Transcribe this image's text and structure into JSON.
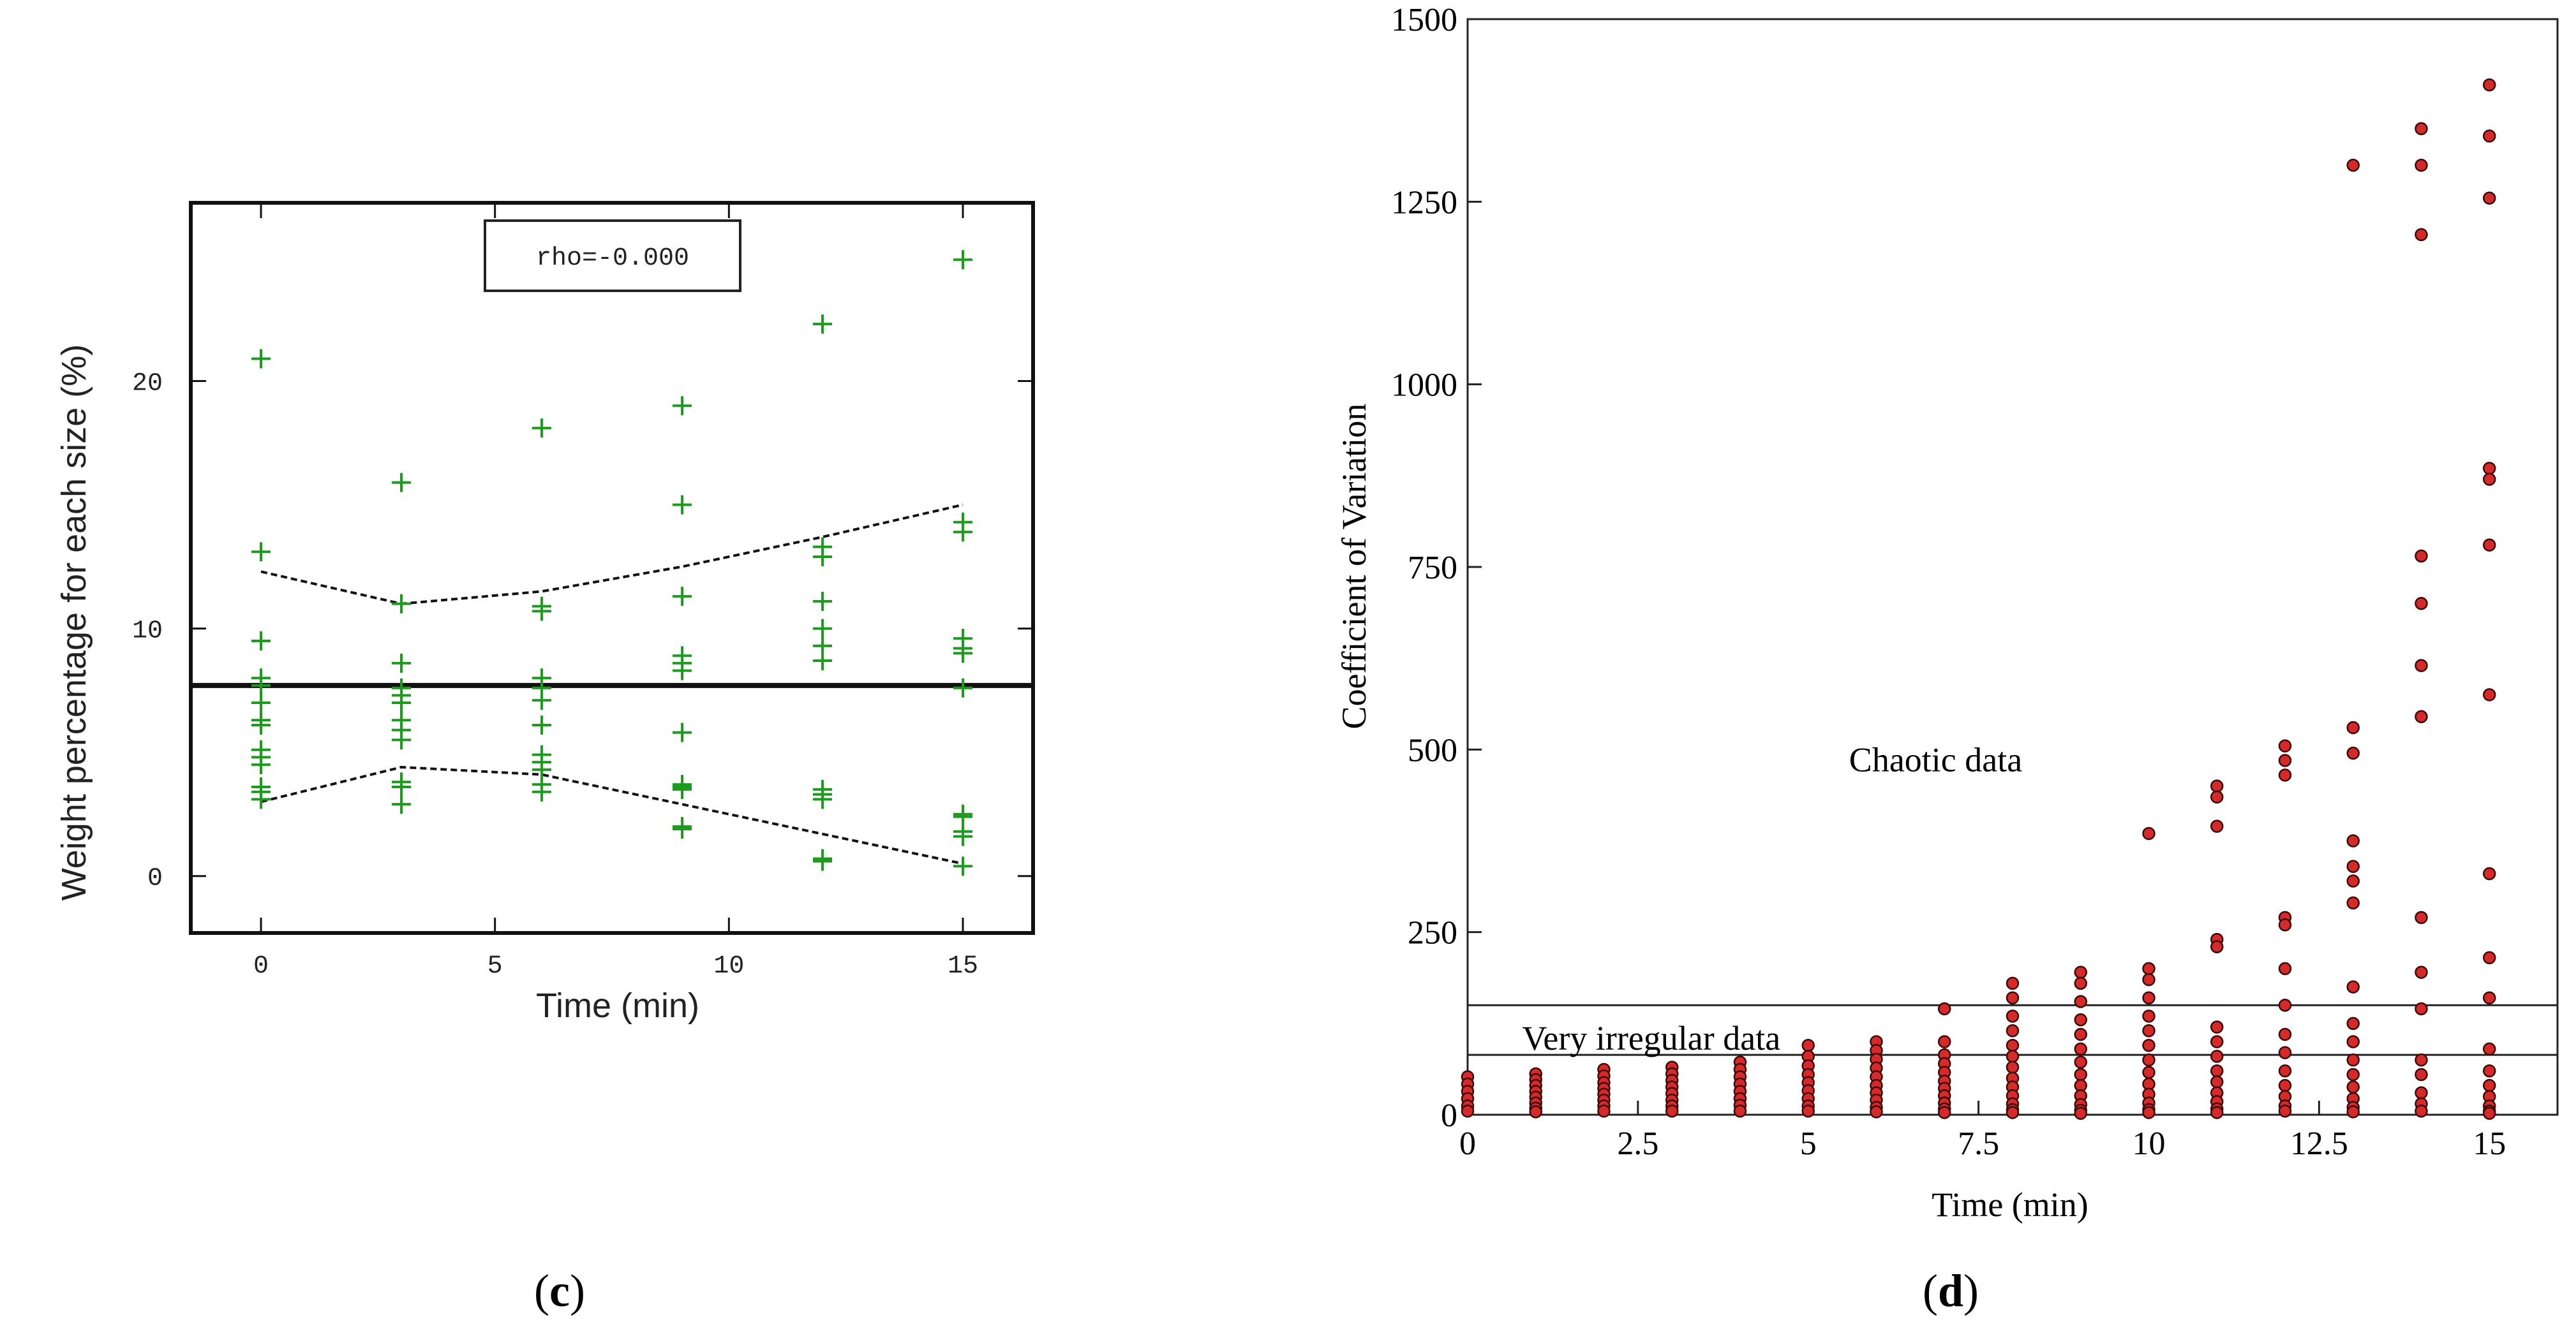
{
  "chart_data": [
    {
      "id": "c",
      "type": "scatter",
      "panel_label": {
        "open": "(",
        "letter": "c",
        "close": ")"
      },
      "xlabel": "Time (min)",
      "ylabel": "Weight percentage for each size (%)",
      "xlim": [
        -1.5,
        16.5
      ],
      "ylim": [
        -2.3,
        27.2
      ],
      "xticks": [
        0,
        5,
        10,
        15
      ],
      "yticks": [
        0,
        10,
        20
      ],
      "legend_text": "rho=-0.000",
      "marker": "+",
      "marker_color": "#1e9a1e",
      "points": {
        "x": [
          0,
          0,
          0,
          0,
          0,
          0,
          0,
          0,
          0,
          0,
          0,
          0,
          0,
          0,
          3,
          3,
          3,
          3,
          3,
          3,
          3,
          3,
          3,
          3,
          3,
          3,
          6,
          6,
          6,
          6,
          6,
          6,
          6,
          6,
          6,
          6,
          6,
          6,
          9,
          9,
          9,
          9,
          9,
          9,
          9,
          9,
          9,
          9,
          9,
          9,
          12,
          12,
          12,
          12,
          12,
          12,
          12,
          12,
          12,
          12,
          12,
          12,
          15,
          15,
          15,
          15,
          15,
          15,
          15,
          15,
          15,
          15,
          15,
          15
        ],
        "y": [
          20.9,
          13.1,
          9.5,
          8.0,
          7.7,
          7.0,
          6.3,
          6.1,
          5.1,
          4.8,
          4.5,
          3.6,
          3.4,
          3.1,
          15.9,
          11.0,
          8.6,
          7.6,
          7.3,
          7.0,
          6.3,
          5.9,
          5.5,
          3.8,
          3.6,
          2.9,
          18.1,
          10.9,
          10.7,
          8.0,
          7.6,
          7.1,
          6.1,
          4.9,
          4.6,
          4.3,
          3.7,
          3.4,
          19.0,
          15.0,
          11.3,
          8.9,
          8.6,
          8.3,
          5.8,
          3.7,
          3.6,
          3.5,
          2.0,
          1.9,
          22.3,
          13.3,
          12.9,
          11.1,
          10.0,
          9.3,
          8.7,
          3.5,
          3.3,
          3.1,
          0.7,
          0.6,
          24.9,
          14.3,
          13.9,
          9.6,
          9.2,
          9.0,
          7.6,
          2.5,
          2.4,
          1.8,
          1.6,
          0.4
        ]
      },
      "mean_line": 7.7,
      "upper_band": {
        "x": [
          0,
          3,
          6,
          9,
          12,
          15
        ],
        "y": [
          12.3,
          11.0,
          11.5,
          12.5,
          13.7,
          15.0
        ]
      },
      "lower_band": {
        "x": [
          0,
          3,
          6,
          9,
          12,
          15
        ],
        "y": [
          3.0,
          4.4,
          4.1,
          2.9,
          1.7,
          0.5
        ]
      }
    },
    {
      "id": "d",
      "type": "scatter",
      "panel_label": {
        "open": "(",
        "letter": "d",
        "close": ")"
      },
      "xlabel": "Time (min)",
      "ylabel": "Coefficient of Variation",
      "xlim": [
        0,
        16
      ],
      "ylim": [
        0,
        1500
      ],
      "xticks": [
        0,
        2.5,
        5,
        7.5,
        10,
        12.5,
        15
      ],
      "xtick_labels": [
        "0",
        "2.5",
        "5",
        "7.5",
        "10",
        "12.5",
        "15"
      ],
      "yticks": [
        0,
        250,
        500,
        750,
        1000,
        1250,
        1500
      ],
      "ytick_labels": [
        "0",
        "250",
        "500",
        "750",
        "1000",
        "1250",
        "1500"
      ],
      "marker": "circle",
      "marker_color": "#d42a2a",
      "thresholds": [
        {
          "value": 150,
          "label": ""
        },
        {
          "value": 82,
          "label": "Very irregular data"
        }
      ],
      "annotations": [
        {
          "text": "Chaotic data",
          "x": 5.6,
          "y": 470
        }
      ],
      "points": {
        "x": [
          0,
          0,
          0,
          0,
          0,
          0,
          1,
          1,
          1,
          1,
          1,
          1,
          1,
          1,
          2,
          2,
          2,
          2,
          2,
          2,
          2,
          2,
          3,
          3,
          3,
          3,
          3,
          3,
          3,
          3,
          4,
          4,
          4,
          4,
          4,
          4,
          4,
          4,
          5,
          5,
          5,
          5,
          5,
          5,
          5,
          5,
          5,
          6,
          6,
          6,
          6,
          6,
          6,
          6,
          6,
          6,
          6,
          7,
          7,
          7,
          7,
          7,
          7,
          7,
          7,
          7,
          7,
          7,
          8,
          8,
          8,
          8,
          8,
          8,
          8,
          8,
          8,
          8,
          8,
          8,
          8,
          9,
          9,
          9,
          9,
          9,
          9,
          9,
          9,
          9,
          9,
          9,
          9,
          9,
          10,
          10,
          10,
          10,
          10,
          10,
          10,
          10,
          10,
          10,
          10,
          10,
          10,
          10,
          11,
          11,
          11,
          11,
          11,
          11,
          11,
          11,
          11,
          11,
          11,
          11,
          11,
          11,
          12,
          12,
          12,
          12,
          12,
          12,
          12,
          12,
          12,
          12,
          12,
          12,
          12,
          12,
          13,
          13,
          13,
          13,
          13,
          13,
          13,
          13,
          13,
          13,
          13,
          13,
          13,
          13,
          13,
          13,
          14,
          14,
          14,
          14,
          14,
          14,
          14,
          14,
          14,
          14,
          14,
          14,
          14,
          14,
          14,
          15,
          15,
          15,
          15,
          15,
          15,
          15,
          15,
          15,
          15,
          15,
          15,
          15,
          15,
          15,
          15,
          15
        ],
        "y": [
          52,
          42,
          32,
          22,
          12,
          5,
          56,
          48,
          40,
          32,
          24,
          16,
          9,
          4,
          62,
          53,
          44,
          36,
          28,
          20,
          12,
          5,
          65,
          56,
          47,
          38,
          29,
          20,
          12,
          5,
          72,
          62,
          52,
          42,
          32,
          22,
          13,
          5,
          95,
          80,
          67,
          55,
          44,
          33,
          22,
          12,
          5,
          100,
          88,
          76,
          64,
          52,
          40,
          30,
          20,
          10,
          4,
          145,
          100,
          82,
          70,
          58,
          46,
          36,
          26,
          16,
          8,
          3,
          180,
          160,
          135,
          115,
          95,
          80,
          65,
          50,
          38,
          26,
          15,
          7,
          3,
          195,
          180,
          155,
          130,
          110,
          90,
          72,
          55,
          40,
          26,
          14,
          6,
          2,
          385,
          200,
          185,
          160,
          135,
          115,
          95,
          75,
          58,
          42,
          28,
          16,
          7,
          3,
          450,
          435,
          395,
          240,
          230,
          120,
          100,
          80,
          60,
          45,
          30,
          18,
          8,
          3,
          505,
          485,
          465,
          270,
          260,
          200,
          150,
          110,
          85,
          60,
          40,
          25,
          12,
          5,
          1300,
          530,
          495,
          375,
          340,
          320,
          290,
          175,
          125,
          100,
          75,
          55,
          38,
          22,
          10,
          4,
          1350,
          1300,
          1205,
          765,
          700,
          615,
          545,
          270,
          195,
          145,
          75,
          55,
          30,
          15,
          5,
          1410,
          1340,
          1255,
          885,
          870,
          780,
          575,
          330,
          215,
          160,
          90,
          60,
          40,
          25,
          12,
          5,
          2
        ]
      }
    }
  ]
}
